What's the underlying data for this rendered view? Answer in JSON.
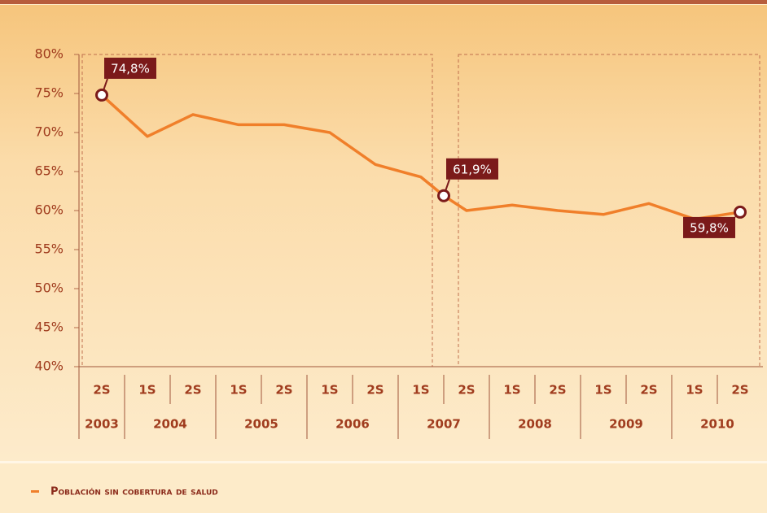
{
  "chart_data": {
    "type": "line",
    "categories": [
      "2S",
      "1S",
      "2S",
      "1S",
      "2S",
      "1S",
      "2S",
      "1S",
      null,
      "2S",
      "1S",
      "2S",
      "1S",
      "2S",
      "1S",
      "2S"
    ],
    "groups": [
      "2003",
      "2004",
      "2005",
      "2006",
      "2007",
      "2008",
      "2009",
      "2010"
    ],
    "series": [
      {
        "name": "Población sin cobertura de salud",
        "color": "#f07f2a",
        "values": [
          74.8,
          69.5,
          72.3,
          71.0,
          71.0,
          70.0,
          65.9,
          64.3,
          61.9,
          60.0,
          60.7,
          60.0,
          59.5,
          60.9,
          58.9,
          59.8
        ],
        "value_labels": [
          "74,8%",
          null,
          null,
          null,
          null,
          null,
          null,
          null,
          "61,9%",
          null,
          null,
          null,
          null,
          null,
          null,
          "59,8%"
        ]
      }
    ],
    "ylim": [
      40,
      80
    ],
    "yticks": [
      {
        "value": 40,
        "label": "40%"
      },
      {
        "value": 45,
        "label": "45%"
      },
      {
        "value": 50,
        "label": "50%"
      },
      {
        "value": 55,
        "label": "55%"
      },
      {
        "value": 60,
        "label": "60%"
      },
      {
        "value": 65,
        "label": "65%"
      },
      {
        "value": 70,
        "label": "70%"
      },
      {
        "value": 75,
        "label": "75%"
      },
      {
        "value": 80,
        "label": "80%"
      }
    ]
  }
}
